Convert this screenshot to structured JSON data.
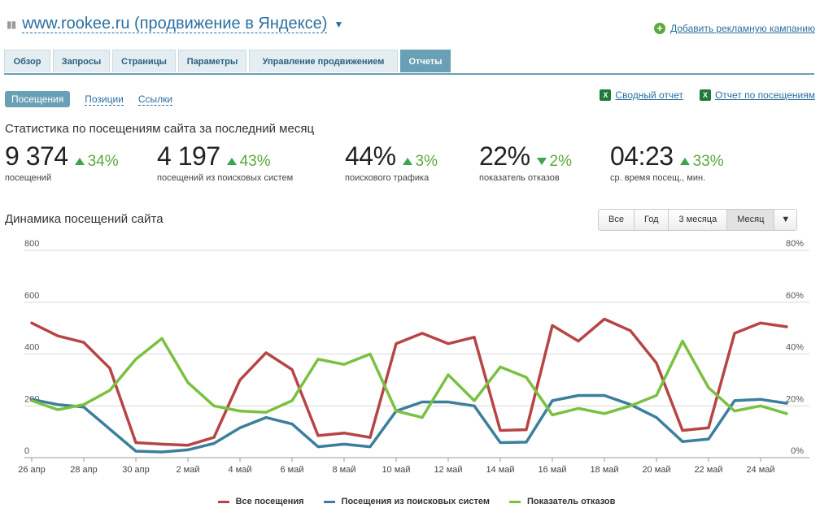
{
  "header": {
    "site_name": "www.rookee.ru (продвижение в Яндексе)",
    "add_campaign": "Добавить рекламную кампанию"
  },
  "tabs": [
    {
      "label": "Обзор",
      "active": false
    },
    {
      "label": "Запросы",
      "active": false
    },
    {
      "label": "Страницы",
      "active": false
    },
    {
      "label": "Параметры",
      "active": false
    },
    {
      "label": "Управление продвижением",
      "active": false
    },
    {
      "label": "Отчеты",
      "active": true
    }
  ],
  "subnav": {
    "active": "Посещения",
    "positions": "Позиции",
    "links": "Ссылки"
  },
  "reports": {
    "summary": "Сводный отчет",
    "visits_report": "Отчет по посещениям"
  },
  "stats": {
    "title": "Статистика по посещениям сайта за последний месяц",
    "items": [
      {
        "value": "9 374",
        "change": "34%",
        "dir": "up",
        "label": "посещений"
      },
      {
        "value": "4 197",
        "change": "43%",
        "dir": "up",
        "label": "посещений из поисковых систем"
      },
      {
        "value": "44%",
        "change": "3%",
        "dir": "up",
        "label": "поискового трафика"
      },
      {
        "value": "22%",
        "change": "2%",
        "dir": "down",
        "label": "показатель отказов"
      },
      {
        "value": "04:23",
        "change": "33%",
        "dir": "up",
        "label": "ср. время посещ., мин."
      }
    ]
  },
  "dynamics": {
    "title": "Динамика посещений сайта",
    "range_buttons": [
      "Все",
      "Год",
      "3 месяца",
      "Месяц"
    ],
    "active_range": "Месяц",
    "dropdown_icon": "triangle-down-icon"
  },
  "colors": {
    "visits": "#b84545",
    "search": "#3c7f9c",
    "bounce": "#7ac142",
    "accent": "#6aa0b5"
  },
  "chart_data": {
    "type": "line",
    "x": [
      "26 апр",
      "27 апр",
      "28 апр",
      "29 апр",
      "30 апр",
      "1 май",
      "2 май",
      "3 май",
      "4 май",
      "5 май",
      "6 май",
      "7 май",
      "8 май",
      "9 май",
      "10 май",
      "11 май",
      "12 май",
      "13 май",
      "14 май",
      "15 май",
      "16 май",
      "17 май",
      "18 май",
      "19 май",
      "20 май",
      "21 май",
      "22 май",
      "23 май",
      "24 май",
      "25 май"
    ],
    "x_tick_labels": [
      "26 апр",
      "28 апр",
      "30 апр",
      "2 май",
      "4 май",
      "6 май",
      "8 май",
      "10 май",
      "12 май",
      "14 май",
      "16 май",
      "18 май",
      "20 май",
      "22 май",
      "24 май"
    ],
    "y_left_ticks": [
      "0",
      "200",
      "400",
      "600",
      "800"
    ],
    "y_right_ticks": [
      "0%",
      "20%",
      "40%",
      "60%",
      "80%"
    ],
    "ylim": [
      0,
      800
    ],
    "ylim_right": [
      0,
      80
    ],
    "grid": true,
    "legend_position": "bottom",
    "series": [
      {
        "name": "Все посещения",
        "axis": "left",
        "color": "#b84545",
        "values": [
          520,
          470,
          445,
          345,
          58,
          52,
          48,
          78,
          300,
          405,
          340,
          85,
          95,
          78,
          440,
          480,
          440,
          465,
          105,
          108,
          510,
          450,
          535,
          490,
          365,
          105,
          115,
          480,
          520,
          505
        ]
      },
      {
        "name": "Посещения из поисковых систем",
        "axis": "left",
        "color": "#3c7f9c",
        "values": [
          225,
          205,
          195,
          110,
          25,
          22,
          30,
          55,
          115,
          155,
          130,
          42,
          52,
          42,
          180,
          215,
          215,
          200,
          58,
          60,
          220,
          240,
          240,
          205,
          155,
          62,
          72,
          220,
          225,
          210
        ]
      },
      {
        "name": "Показатель отказов",
        "axis": "right",
        "color": "#7ac142",
        "values": [
          22,
          18.5,
          20.5,
          26,
          38,
          46,
          29,
          20,
          18,
          17.5,
          22,
          38,
          36,
          40,
          18,
          15.5,
          32,
          22,
          35,
          31,
          16.5,
          19,
          17,
          20,
          24,
          45,
          27,
          18,
          20,
          17
        ]
      }
    ]
  }
}
